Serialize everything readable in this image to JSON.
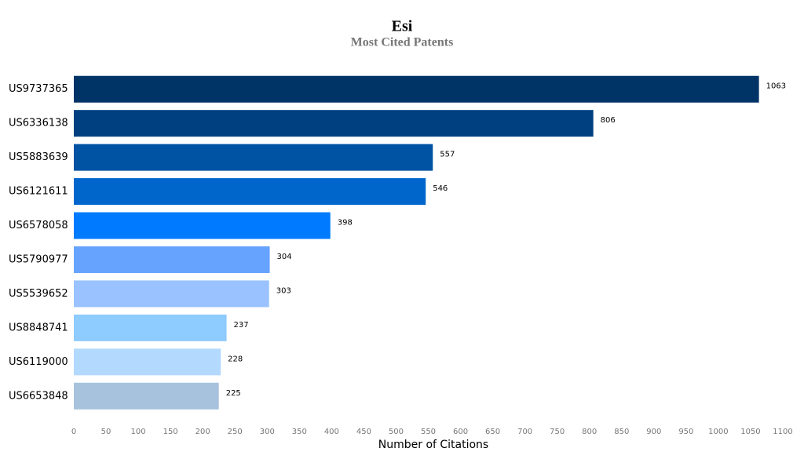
{
  "chart_data": {
    "type": "bar",
    "orientation": "horizontal",
    "title": "Esi",
    "subtitle": "Most Cited Patents",
    "xlabel": "Number of Citations",
    "categories": [
      "US9737365",
      "US6336138",
      "US5883639",
      "US6121611",
      "US6578058",
      "US5790977",
      "US5539652",
      "US8848741",
      "US6119000",
      "US6653848"
    ],
    "values": [
      1063,
      806,
      557,
      546,
      398,
      304,
      303,
      237,
      228,
      225
    ],
    "colors": [
      "#003366",
      "#004080",
      "#0052a3",
      "#0066cc",
      "#007bff",
      "#66a3ff",
      "#99c2ff",
      "#8ecbff",
      "#b3d9ff",
      "#a7c2dd"
    ],
    "xlim": [
      0,
      1100
    ],
    "xticks": [
      0,
      50,
      100,
      150,
      200,
      250,
      300,
      350,
      400,
      450,
      500,
      550,
      600,
      650,
      700,
      750,
      800,
      850,
      900,
      950,
      1000,
      1050,
      1100
    ],
    "grid": false
  }
}
